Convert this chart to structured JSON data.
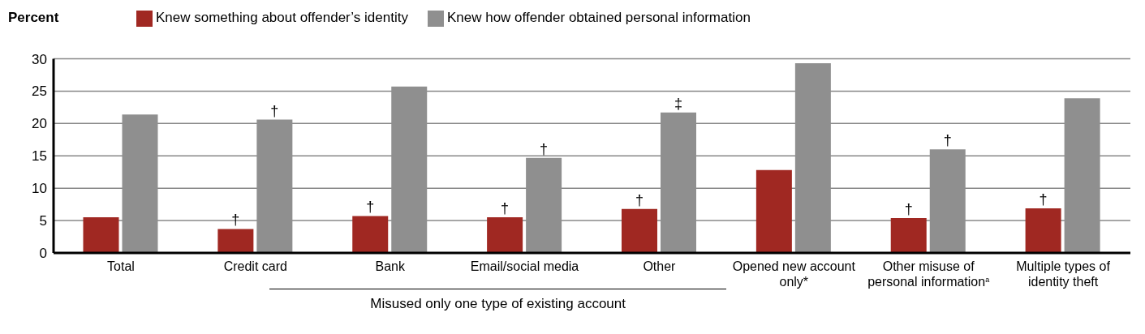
{
  "chart_data": {
    "type": "bar",
    "ylabel": "Percent",
    "categories": [
      "Total",
      "Credit card",
      "Bank",
      "Email/social media",
      "Other",
      "Opened new account only*",
      "Other misuse of personal information$^{a}$",
      "Multiple types of identity theft"
    ],
    "series": [
      {
        "name": "Knew something about offender’s identity",
        "color": "#a02822",
        "values": [
          5.5,
          3.7,
          5.7,
          5.5,
          6.8,
          12.8,
          5.4,
          6.9
        ]
      },
      {
        "name": "Knew how offender obtained personal information",
        "color": "#8f8f8f",
        "values": [
          21.4,
          20.6,
          25.7,
          14.7,
          21.7,
          29.3,
          16.0,
          23.9
        ]
      }
    ],
    "ylim": [
      0,
      30
    ],
    "yticks": [
      0,
      5,
      10,
      15,
      20,
      25,
      30
    ],
    "grid": "y",
    "legend": "top",
    "annotations": [
      {
        "text": "†",
        "x": "Credit card",
        "y": 3.7
      },
      {
        "text": "†",
        "x": "Credit card",
        "y": 20.6
      },
      {
        "text": "†",
        "x": "Bank",
        "y": 5.7
      },
      {
        "text": "†",
        "x": "Email/social media",
        "y": 5.5
      },
      {
        "text": "†",
        "x": "Email/social media",
        "y": 14.7
      },
      {
        "text": "†",
        "x": "Other",
        "y": 6.8
      },
      {
        "text": "‡",
        "x": "Other",
        "y": 21.7
      },
      {
        "text": "†",
        "x": "Other misuse of personal information$^{a}$",
        "y": 5.4
      },
      {
        "text": "†",
        "x": "Other misuse of personal information$^{a}$",
        "y": 16.0
      },
      {
        "text": "†",
        "x": "Multiple types of identity theft",
        "y": 6.9
      },
      "Misused only one type of existing account"
    ]
  }
}
